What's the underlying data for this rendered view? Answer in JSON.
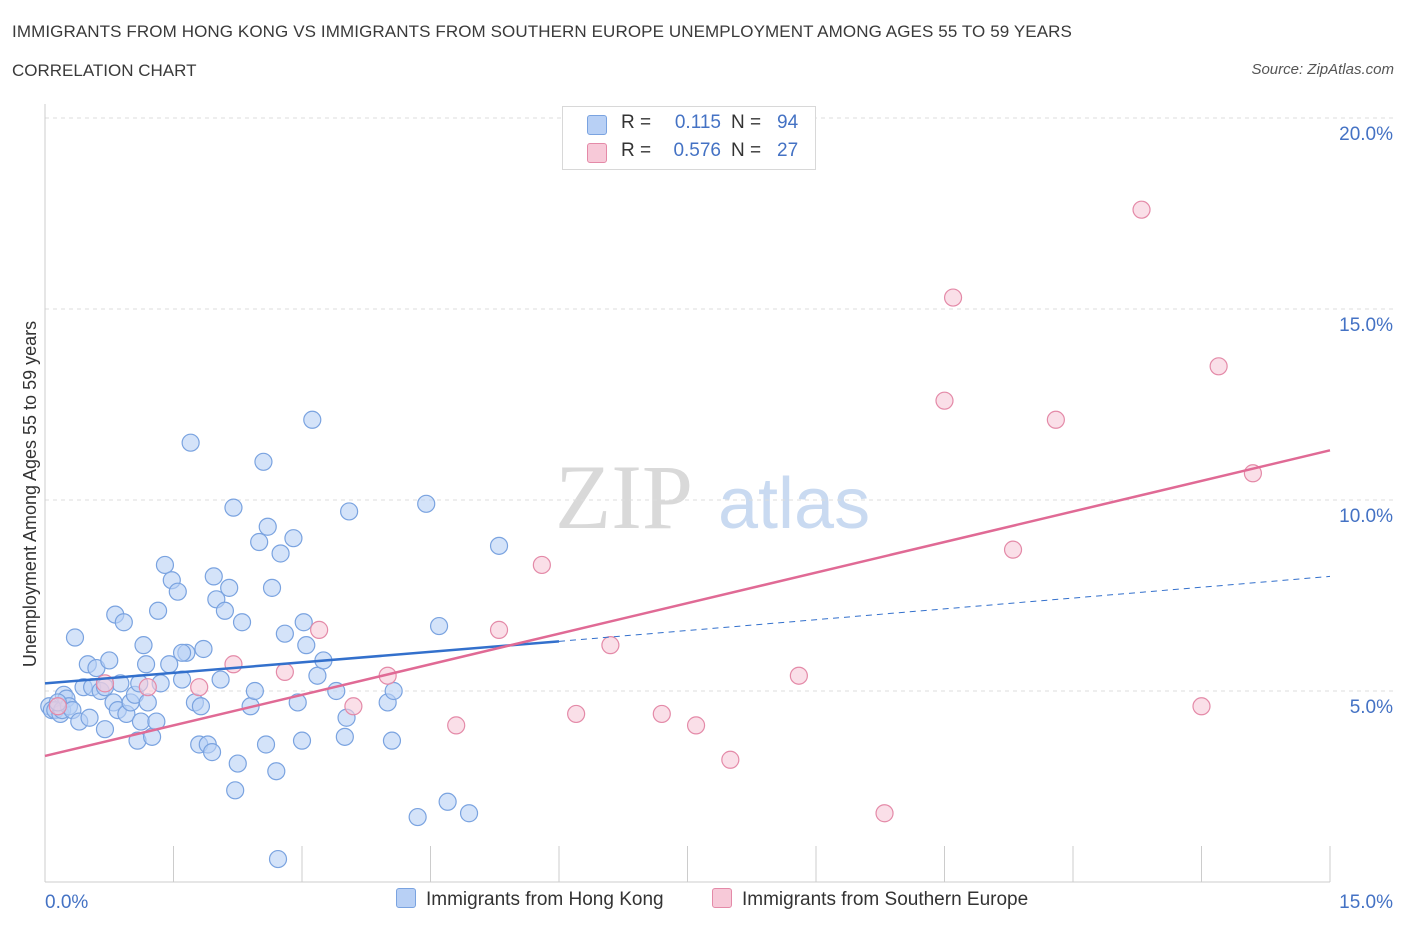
{
  "header": {
    "title": "IMMIGRANTS FROM HONG KONG VS IMMIGRANTS FROM SOUTHERN EUROPE UNEMPLOYMENT AMONG AGES 55 TO 59 YEARS",
    "subtitle": "CORRELATION CHART",
    "source": "Source: ZipAtlas.com"
  },
  "legend": {
    "r_label": "R =",
    "n_label": "N =",
    "series1": {
      "r": "0.115",
      "n": "94"
    },
    "series2": {
      "r": "0.576",
      "n": "27"
    }
  },
  "colors": {
    "series1_fill": "#b8d0f5",
    "series1_stroke": "#7aa3e0",
    "series1_line": "#3370cc",
    "series2_fill": "#f7c9d8",
    "series2_stroke": "#e48aa8",
    "series2_line": "#e06a95",
    "axis_text": "#4472c4",
    "grid": "#dddddd"
  },
  "chart_data": {
    "type": "scatter",
    "title": "IMMIGRANTS FROM HONG KONG VS IMMIGRANTS FROM SOUTHERN EUROPE UNEMPLOYMENT AMONG AGES 55 TO 59 YEARS",
    "ylabel": "Unemployment Among Ages 55 to 59 years",
    "xlabel": "",
    "xlim": [
      0,
      15
    ],
    "ylim": [
      0,
      20
    ],
    "x_tick_labels": [
      "0.0%",
      "15.0%"
    ],
    "y_ticks": [
      5,
      10,
      15,
      20
    ],
    "y_tick_labels": [
      "5.0%",
      "10.0%",
      "15.0%",
      "20.0%"
    ],
    "grid": true,
    "legend_position": "top-center",
    "watermark": {
      "zip": "ZIP",
      "atlas": "atlas"
    },
    "series": [
      {
        "name": "Immigrants from Hong Kong",
        "points": [
          [
            0.05,
            4.6
          ],
          [
            0.08,
            4.5
          ],
          [
            0.12,
            4.5
          ],
          [
            0.18,
            4.4
          ],
          [
            0.2,
            4.5
          ],
          [
            0.22,
            4.9
          ],
          [
            0.25,
            4.8
          ],
          [
            0.28,
            4.6
          ],
          [
            0.32,
            4.5
          ],
          [
            0.35,
            6.4
          ],
          [
            0.4,
            4.2
          ],
          [
            0.45,
            5.1
          ],
          [
            0.5,
            5.7
          ],
          [
            0.52,
            4.3
          ],
          [
            0.55,
            5.1
          ],
          [
            0.6,
            5.6
          ],
          [
            0.65,
            5.0
          ],
          [
            0.7,
            4.0
          ],
          [
            0.75,
            5.8
          ],
          [
            0.8,
            4.7
          ],
          [
            0.82,
            7.0
          ],
          [
            0.85,
            4.5
          ],
          [
            0.88,
            5.2
          ],
          [
            0.92,
            6.8
          ],
          [
            0.95,
            4.4
          ],
          [
            1.0,
            4.7
          ],
          [
            1.05,
            4.9
          ],
          [
            1.08,
            3.7
          ],
          [
            1.12,
            4.2
          ],
          [
            1.15,
            6.2
          ],
          [
            1.18,
            5.7
          ],
          [
            1.2,
            4.7
          ],
          [
            1.25,
            3.8
          ],
          [
            1.3,
            4.2
          ],
          [
            1.32,
            7.1
          ],
          [
            1.35,
            5.2
          ],
          [
            1.4,
            8.3
          ],
          [
            1.45,
            5.7
          ],
          [
            1.48,
            7.9
          ],
          [
            1.55,
            7.6
          ],
          [
            1.6,
            5.3
          ],
          [
            1.65,
            6.0
          ],
          [
            1.7,
            11.5
          ],
          [
            1.75,
            4.7
          ],
          [
            1.8,
            3.6
          ],
          [
            1.82,
            4.6
          ],
          [
            1.85,
            6.1
          ],
          [
            1.9,
            3.6
          ],
          [
            1.95,
            3.4
          ],
          [
            1.97,
            8.0
          ],
          [
            2.0,
            7.4
          ],
          [
            2.05,
            5.3
          ],
          [
            2.1,
            7.1
          ],
          [
            2.15,
            7.7
          ],
          [
            2.2,
            9.8
          ],
          [
            2.22,
            2.4
          ],
          [
            2.25,
            3.1
          ],
          [
            2.3,
            6.8
          ],
          [
            2.4,
            4.6
          ],
          [
            2.45,
            5.0
          ],
          [
            2.5,
            8.9
          ],
          [
            2.55,
            11.0
          ],
          [
            2.58,
            3.6
          ],
          [
            2.6,
            9.3
          ],
          [
            2.65,
            7.7
          ],
          [
            2.7,
            2.9
          ],
          [
            2.72,
            0.6
          ],
          [
            2.75,
            8.6
          ],
          [
            2.8,
            6.5
          ],
          [
            2.9,
            9.0
          ],
          [
            2.95,
            4.7
          ],
          [
            3.0,
            3.7
          ],
          [
            3.02,
            6.8
          ],
          [
            3.05,
            6.2
          ],
          [
            3.12,
            12.1
          ],
          [
            3.18,
            5.4
          ],
          [
            3.25,
            5.8
          ],
          [
            3.4,
            5.0
          ],
          [
            3.5,
            3.8
          ],
          [
            3.52,
            4.3
          ],
          [
            3.55,
            9.7
          ],
          [
            4.0,
            4.7
          ],
          [
            4.05,
            3.7
          ],
          [
            4.07,
            5.0
          ],
          [
            4.35,
            1.7
          ],
          [
            4.45,
            9.9
          ],
          [
            4.6,
            6.7
          ],
          [
            4.7,
            2.1
          ],
          [
            4.95,
            1.8
          ],
          [
            5.3,
            8.8
          ],
          [
            0.15,
            4.7
          ],
          [
            1.1,
            5.2
          ],
          [
            0.7,
            5.1
          ],
          [
            1.6,
            6.0
          ]
        ]
      },
      {
        "name": "Immigrants from Southern Europe",
        "points": [
          [
            0.15,
            4.6
          ],
          [
            0.7,
            5.2
          ],
          [
            1.2,
            5.1
          ],
          [
            1.8,
            5.1
          ],
          [
            2.2,
            5.7
          ],
          [
            2.8,
            5.5
          ],
          [
            3.2,
            6.6
          ],
          [
            3.6,
            4.6
          ],
          [
            4.0,
            5.4
          ],
          [
            4.8,
            4.1
          ],
          [
            5.3,
            6.6
          ],
          [
            5.8,
            8.3
          ],
          [
            6.2,
            4.4
          ],
          [
            6.6,
            6.2
          ],
          [
            7.2,
            4.4
          ],
          [
            7.6,
            4.1
          ],
          [
            8.0,
            3.2
          ],
          [
            8.8,
            5.4
          ],
          [
            9.8,
            1.8
          ],
          [
            10.5,
            12.6
          ],
          [
            10.6,
            15.3
          ],
          [
            11.3,
            8.7
          ],
          [
            11.8,
            12.1
          ],
          [
            12.8,
            17.6
          ],
          [
            13.5,
            4.6
          ],
          [
            13.7,
            13.5
          ],
          [
            14.1,
            10.7
          ]
        ]
      }
    ],
    "trend_lines": [
      {
        "series": "Immigrants from Hong Kong",
        "x": [
          0,
          6.0
        ],
        "y": [
          5.2,
          6.3
        ],
        "dashed_extension_x": [
          6.0,
          15
        ],
        "dashed_extension_y": [
          6.3,
          8.0
        ]
      },
      {
        "series": "Immigrants from Southern Europe",
        "x": [
          0,
          15
        ],
        "y": [
          3.3,
          11.3
        ]
      }
    ]
  }
}
